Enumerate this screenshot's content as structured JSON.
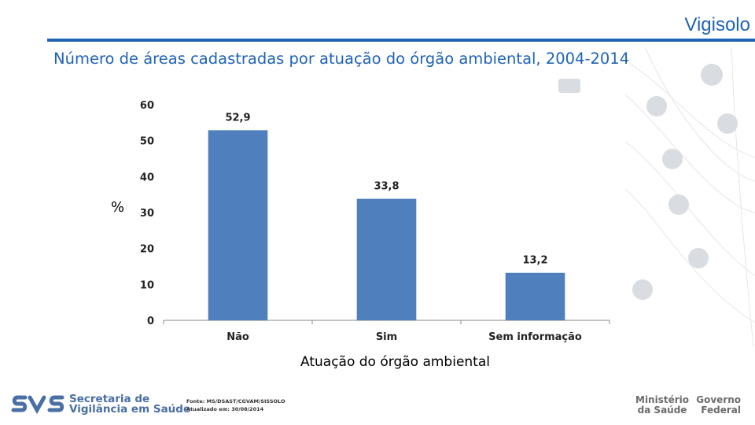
{
  "header": {
    "brand": "Vigisolo",
    "title": "Número de áreas cadastradas por atuação do órgão ambiental, 2004-2014"
  },
  "colors": {
    "accent": "#1f63b6",
    "bar": "#4f7fbc"
  },
  "chart_data": {
    "type": "bar",
    "title": "Número de áreas cadastradas por atuação do órgão ambiental, 2004-2014",
    "xlabel": "Atuação do órgão ambiental",
    "ylabel": "%",
    "categories": [
      "Não",
      "Sim",
      "Sem informação"
    ],
    "values": [
      52.9,
      33.8,
      13.2
    ],
    "value_labels": [
      "52,9",
      "33,8",
      "13,2"
    ],
    "ylim": [
      0,
      60
    ],
    "yticks": [
      0,
      10,
      20,
      30,
      40,
      50,
      60
    ],
    "grid": false,
    "legend": "none"
  },
  "footer": {
    "svs_line1": "Secretaria de",
    "svs_line2": "Vigilância em Saúde",
    "source_line1": "Fonte: MS/DSAST/CGVAM/SISSOLO",
    "source_line2": "Atualizado em: 30/08/2014",
    "ministry_line1": "Ministério",
    "ministry_line2": "da Saúde",
    "gov_line1": "Governo",
    "gov_line2": "Federal"
  }
}
